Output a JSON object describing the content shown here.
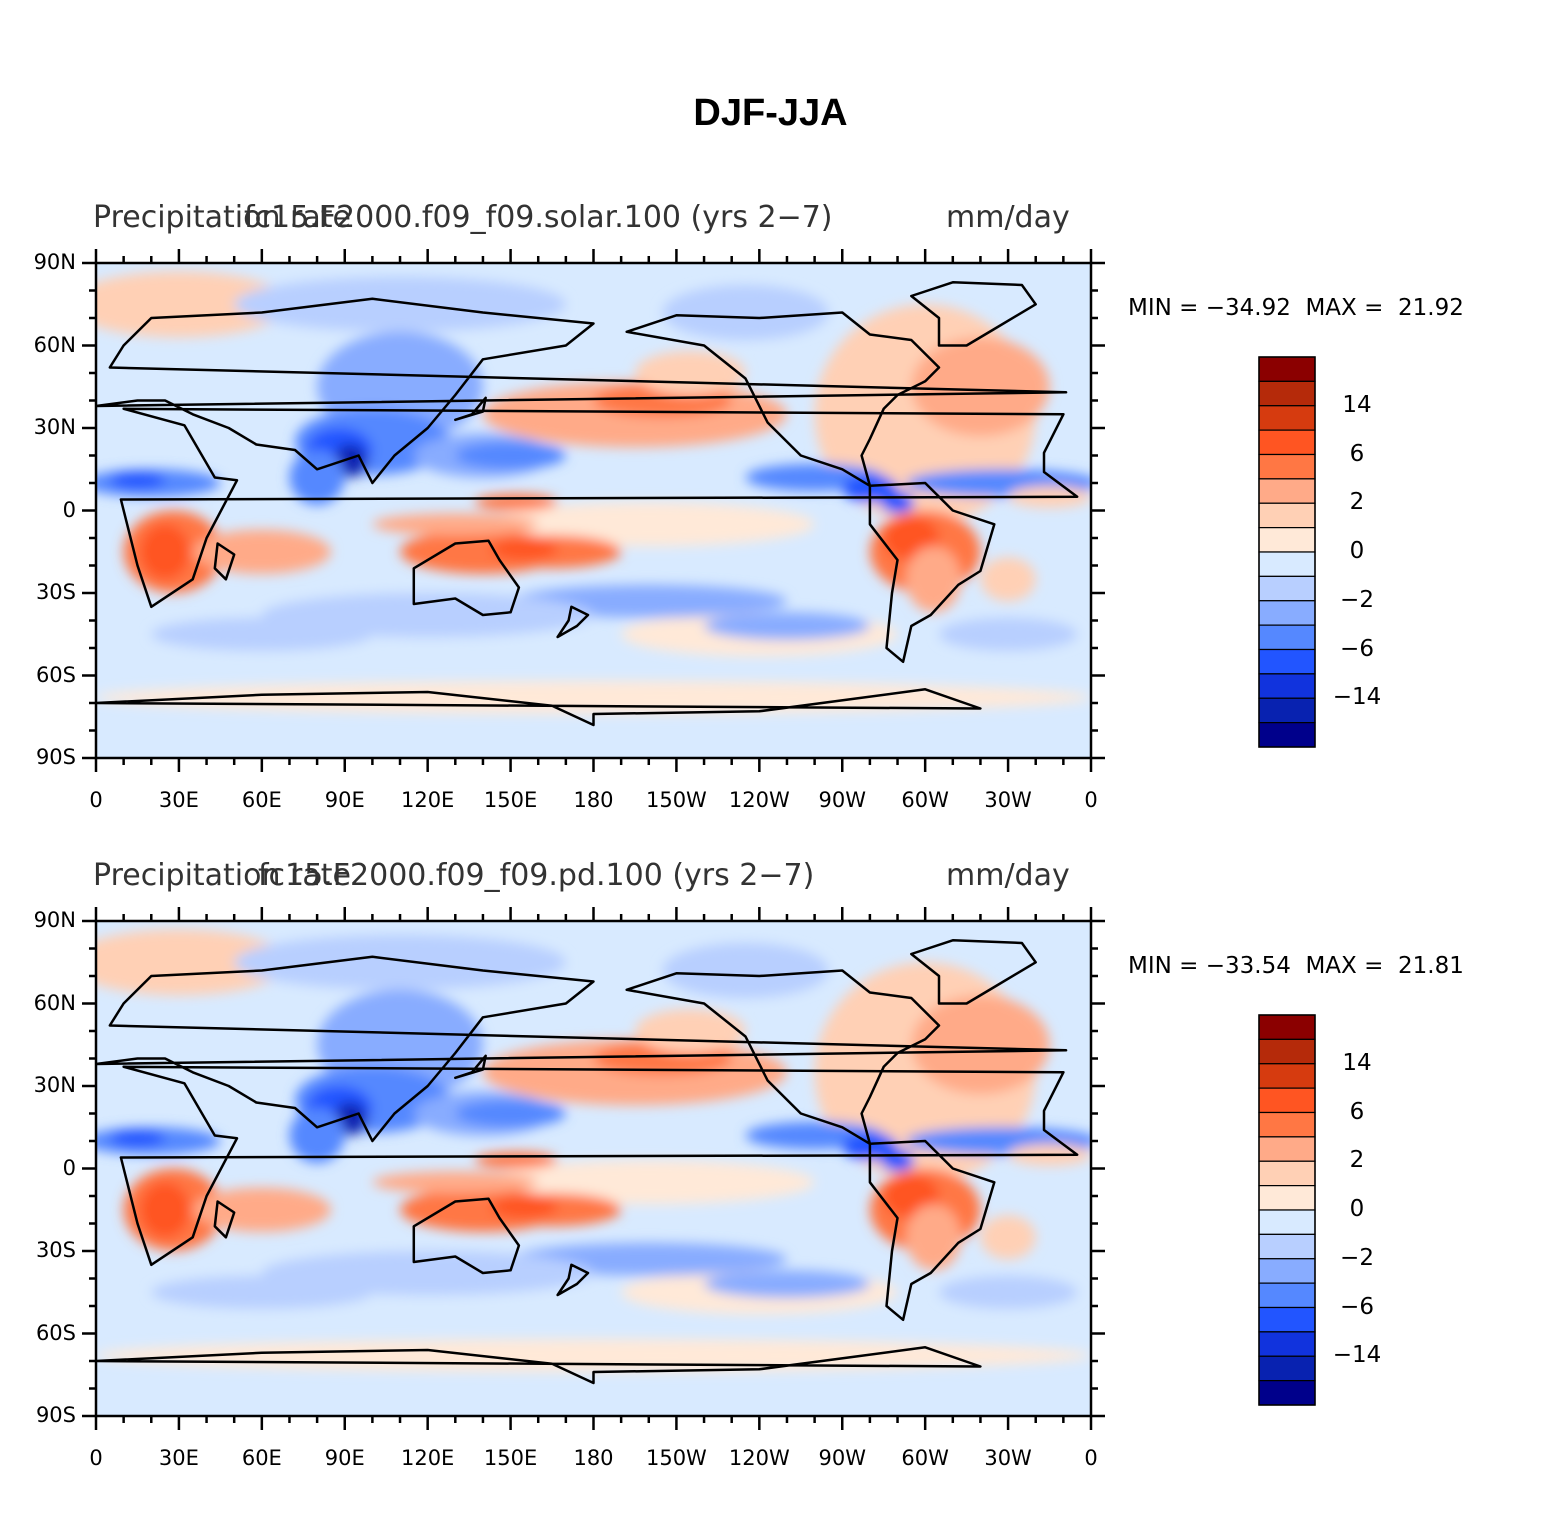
{
  "figure": {
    "title": "DJF-JJA",
    "y_ticks": [
      "90N",
      "60N",
      "30N",
      "0",
      "30S",
      "60S",
      "90S"
    ],
    "x_ticks": [
      "0",
      "30E",
      "60E",
      "90E",
      "120E",
      "150E",
      "180",
      "150W",
      "120W",
      "90W",
      "60W",
      "30W",
      "0"
    ]
  },
  "colorbar": {
    "labels": [
      "14",
      "6",
      "2",
      "0",
      "−2",
      "−6",
      "−14"
    ],
    "colors_top_to_bottom": [
      "#8b0000",
      "#b52a0a",
      "#d63b0f",
      "#ff5522",
      "#ff7744",
      "#ffaa88",
      "#ffd0b5",
      "#ffe9d8",
      "#d8eaff",
      "#b8cfff",
      "#88acff",
      "#5588ff",
      "#2255ff",
      "#1133dd",
      "#0822b0",
      "#00008b"
    ]
  },
  "panels": [
    {
      "left_title": "Precipitation rate",
      "center_title": "fc15.F2000.f09_f09.solar.100 (yrs 2−7)",
      "right_title": "mm/day",
      "minmax": "MIN = −34.92  MAX =  21.92"
    },
    {
      "left_title": "Precipitation rate",
      "center_title": "fc15.F2000.f09_f09.pd.100 (yrs 2−7)",
      "right_title": "mm/day",
      "minmax": "MIN = −33.54  MAX =  21.81"
    }
  ],
  "chart_data": [
    {
      "type": "heatmap",
      "variable": "Precipitation rate",
      "units": "mm/day",
      "case": "fc15.F2000.f09_f09.solar.100 (yrs 2−7)",
      "season_difference": "DJF-JJA",
      "min": -34.92,
      "max": 21.92,
      "lon_range": [
        0,
        360
      ],
      "lat_range": [
        -90,
        90
      ],
      "colorbar_labels": [
        14,
        6,
        2,
        0,
        -2,
        -6,
        -14
      ]
    },
    {
      "type": "heatmap",
      "variable": "Precipitation rate",
      "units": "mm/day",
      "case": "fc15.F2000.f09_f09.pd.100 (yrs 2−7)",
      "season_difference": "DJF-JJA",
      "min": -33.54,
      "max": 21.81,
      "lon_range": [
        0,
        360
      ],
      "lat_range": [
        -90,
        90
      ],
      "colorbar_labels": [
        14,
        6,
        2,
        0,
        -2,
        -6,
        -14
      ]
    }
  ]
}
